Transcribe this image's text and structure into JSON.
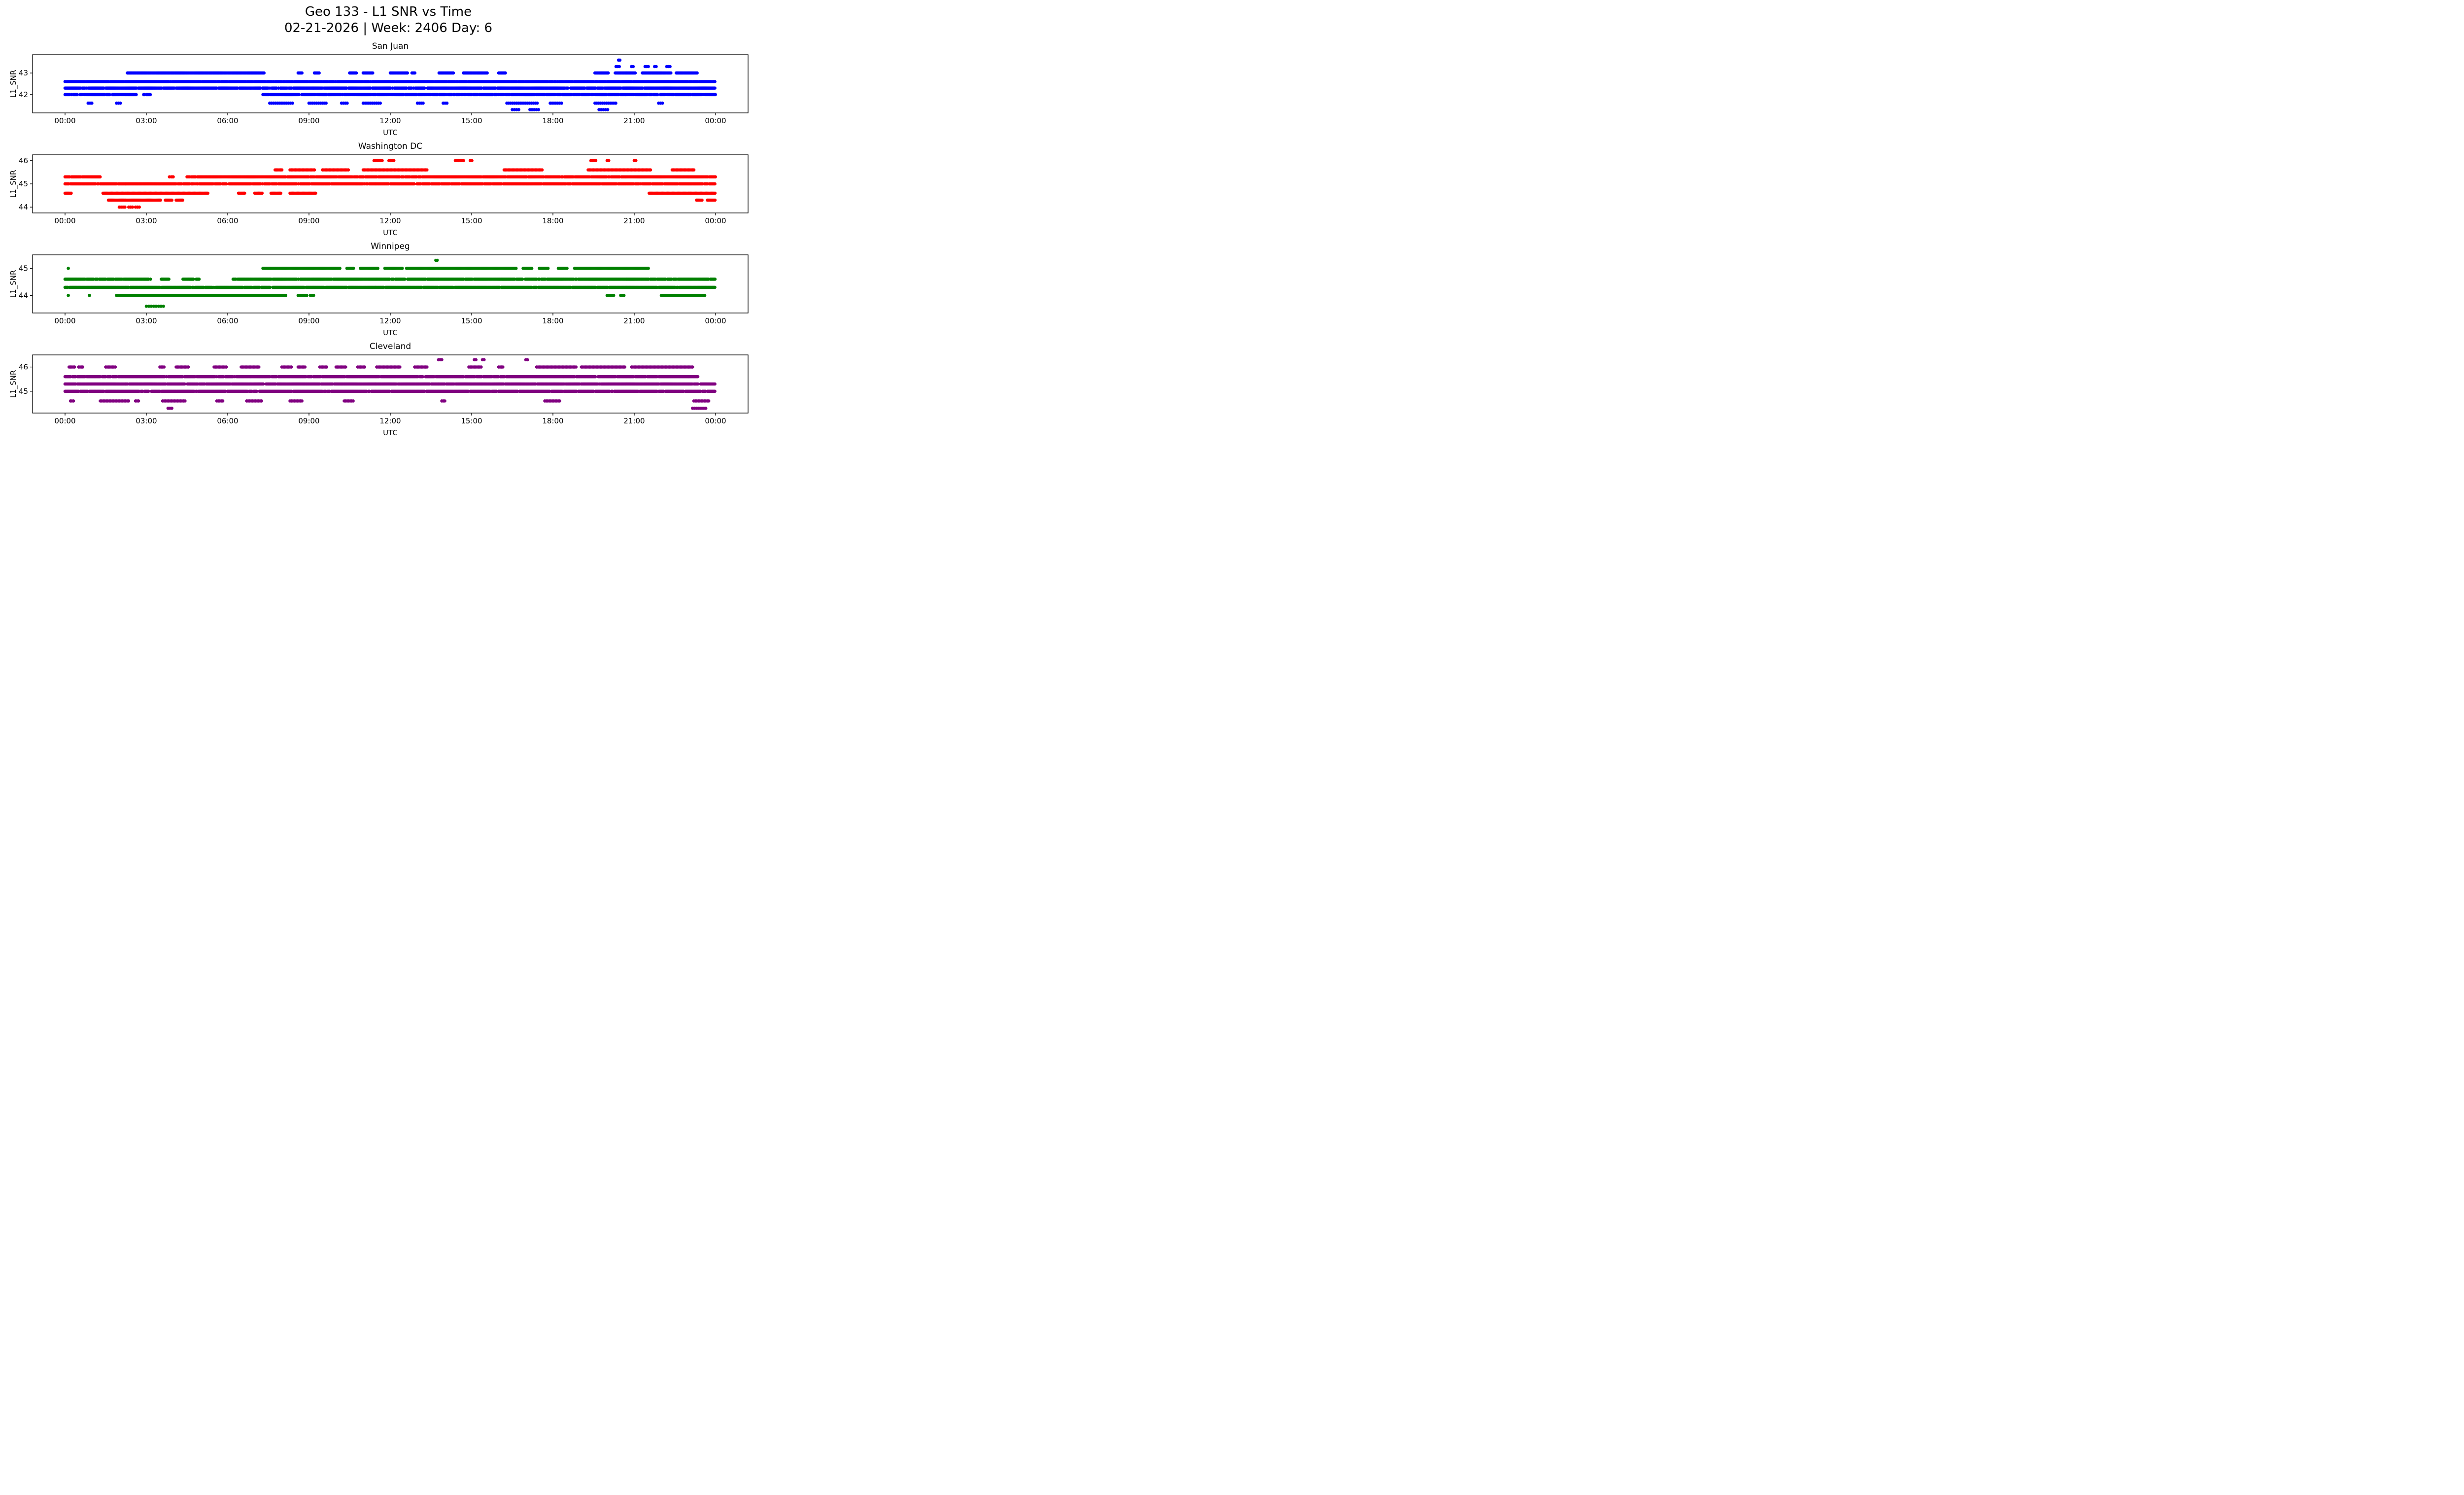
{
  "title": "Geo 133 - L1 SNR vs Time",
  "subtitle": "02-21-2026 | Week: 2406 Day: 6",
  "chart_data": [
    {
      "type": "scatter",
      "title": "San Juan",
      "color": "#0000ff",
      "xlabel": "UTC",
      "ylabel": "L1_SNR",
      "xlim": [
        -1.2,
        25.2
      ],
      "ylim": [
        41.15,
        43.85
      ],
      "yticks": [
        42,
        43
      ],
      "xticks": {
        "values": [
          0,
          3,
          6,
          9,
          12,
          15,
          18,
          21,
          24
        ],
        "labels": [
          "00:00",
          "03:00",
          "06:00",
          "09:00",
          "12:00",
          "15:00",
          "18:00",
          "21:00",
          "00:00"
        ]
      },
      "bands": [
        {
          "y": 43.6,
          "step": 0.05,
          "segments": [
            [
              20.42,
              20.48
            ]
          ]
        },
        {
          "y": 43.3,
          "step": 0.06,
          "segments": [
            [
              20.33,
              20.48
            ],
            [
              20.9,
              21.0
            ],
            [
              21.4,
              21.55
            ],
            [
              21.75,
              21.85
            ],
            [
              22.2,
              22.32
            ]
          ]
        },
        {
          "y": 43.0,
          "step": 0.035,
          "segments": [
            [
              2.3,
              7.35
            ],
            [
              8.6,
              8.75
            ],
            [
              9.2,
              9.4
            ],
            [
              10.5,
              10.75
            ],
            [
              11.0,
              11.35
            ],
            [
              12.0,
              12.65
            ],
            [
              12.8,
              12.92
            ],
            [
              13.8,
              14.35
            ],
            [
              14.7,
              15.6
            ],
            [
              16.0,
              16.25
            ],
            [
              19.55,
              20.05
            ],
            [
              20.3,
              21.05
            ],
            [
              21.3,
              22.35
            ],
            [
              22.55,
              23.35
            ]
          ]
        },
        {
          "y": 42.6,
          "step": 0.035,
          "drop": 0.06,
          "segments": [
            [
              0.0,
              24.0
            ]
          ]
        },
        {
          "y": 42.3,
          "step": 0.035,
          "drop": 0.06,
          "segments": [
            [
              0.0,
              24.0
            ]
          ]
        },
        {
          "y": 42.0,
          "step": 0.035,
          "drop": 0.08,
          "segments": [
            [
              0.0,
              2.65
            ],
            [
              2.9,
              3.15
            ],
            [
              7.3,
              24.0
            ]
          ]
        },
        {
          "y": 41.6,
          "step": 0.07,
          "segments": [
            [
              0.85,
              1.0
            ],
            [
              1.9,
              2.05
            ],
            [
              7.55,
              8.45
            ],
            [
              9.0,
              9.65
            ],
            [
              10.2,
              10.45
            ],
            [
              11.0,
              11.65
            ],
            [
              13.0,
              13.25
            ],
            [
              13.95,
              14.1
            ],
            [
              16.3,
              17.45
            ],
            [
              17.9,
              18.35
            ],
            [
              19.55,
              20.35
            ],
            [
              21.9,
              22.05
            ]
          ]
        },
        {
          "y": 41.3,
          "step": 0.08,
          "segments": [
            [
              16.5,
              16.75
            ],
            [
              17.15,
              17.5
            ],
            [
              19.7,
              20.05
            ]
          ]
        }
      ],
      "points": []
    },
    {
      "type": "scatter",
      "title": "Washington DC",
      "color": "#ff0000",
      "xlabel": "UTC",
      "ylabel": "L1_SNR",
      "xlim": [
        -1.2,
        25.2
      ],
      "ylim": [
        43.75,
        46.25
      ],
      "yticks": [
        44,
        45,
        46
      ],
      "xticks": {
        "values": [
          0,
          3,
          6,
          9,
          12,
          15,
          18,
          21,
          24
        ],
        "labels": [
          "00:00",
          "03:00",
          "06:00",
          "09:00",
          "12:00",
          "15:00",
          "18:00",
          "21:00",
          "00:00"
        ]
      },
      "bands": [
        {
          "y": 46.0,
          "step": 0.06,
          "segments": [
            [
              11.4,
              11.75
            ],
            [
              11.95,
              12.15
            ],
            [
              14.4,
              14.75
            ],
            [
              14.95,
              15.05
            ],
            [
              19.4,
              19.6
            ],
            [
              20.0,
              20.1
            ],
            [
              21.0,
              21.1
            ]
          ]
        },
        {
          "y": 45.6,
          "step": 0.05,
          "segments": [
            [
              7.75,
              8.0
            ],
            [
              8.3,
              9.2
            ],
            [
              9.5,
              10.45
            ],
            [
              11.0,
              13.35
            ],
            [
              16.2,
              17.6
            ],
            [
              19.3,
              21.6
            ],
            [
              22.4,
              23.2
            ]
          ]
        },
        {
          "y": 45.3,
          "step": 0.035,
          "drop": 0.05,
          "segments": [
            [
              0.0,
              1.3
            ],
            [
              3.85,
              4.0
            ],
            [
              4.5,
              24.0
            ]
          ]
        },
        {
          "y": 45.0,
          "step": 0.035,
          "drop": 0.07,
          "segments": [
            [
              0.0,
              24.0
            ]
          ]
        },
        {
          "y": 44.6,
          "step": 0.045,
          "segments": [
            [
              0.0,
              0.25
            ],
            [
              1.4,
              5.3
            ],
            [
              6.4,
              6.65
            ],
            [
              7.0,
              7.3
            ],
            [
              7.6,
              8.0
            ],
            [
              8.3,
              9.25
            ],
            [
              21.55,
              24.0
            ]
          ]
        },
        {
          "y": 44.3,
          "step": 0.04,
          "segments": [
            [
              1.6,
              3.55
            ],
            [
              3.7,
              3.95
            ],
            [
              4.1,
              4.35
            ],
            [
              23.3,
              23.5
            ],
            [
              23.7,
              24.0
            ]
          ]
        },
        {
          "y": 44.0,
          "step": 0.07,
          "segments": [
            [
              2.0,
              2.25
            ],
            [
              2.35,
              2.5
            ],
            [
              2.6,
              2.75
            ]
          ]
        }
      ],
      "points": []
    },
    {
      "type": "scatter",
      "title": "Winnipeg",
      "color": "#008000",
      "xlabel": "UTC",
      "ylabel": "L1_SNR",
      "xlim": [
        -1.2,
        25.2
      ],
      "ylim": [
        43.35,
        45.5
      ],
      "yticks": [
        44,
        45
      ],
      "xticks": {
        "values": [
          0,
          3,
          6,
          9,
          12,
          15,
          18,
          21,
          24
        ],
        "labels": [
          "00:00",
          "03:00",
          "06:00",
          "09:00",
          "12:00",
          "15:00",
          "18:00",
          "21:00",
          "00:00"
        ]
      },
      "bands": [
        {
          "y": 45.3,
          "step": 0.05,
          "segments": [
            [
              13.68,
              13.74
            ]
          ]
        },
        {
          "y": 45.0,
          "step": 0.04,
          "segments": [
            [
              7.3,
              10.15
            ],
            [
              10.4,
              10.65
            ],
            [
              10.9,
              11.55
            ],
            [
              11.8,
              12.45
            ],
            [
              12.6,
              16.65
            ],
            [
              16.9,
              17.25
            ],
            [
              17.5,
              17.85
            ],
            [
              18.2,
              18.55
            ],
            [
              18.8,
              21.55
            ]
          ]
        },
        {
          "y": 44.6,
          "step": 0.035,
          "drop": 0.06,
          "segments": [
            [
              0.0,
              3.15
            ],
            [
              3.55,
              3.85
            ],
            [
              4.35,
              4.95
            ],
            [
              6.2,
              24.0
            ]
          ]
        },
        {
          "y": 44.3,
          "step": 0.035,
          "drop": 0.05,
          "segments": [
            [
              0.0,
              24.0
            ]
          ]
        },
        {
          "y": 44.0,
          "step": 0.04,
          "segments": [
            [
              1.9,
              8.15
            ],
            [
              8.6,
              8.95
            ],
            [
              9.05,
              9.2
            ],
            [
              20.0,
              20.25
            ],
            [
              20.5,
              20.65
            ],
            [
              22.0,
              23.6
            ]
          ]
        },
        {
          "y": 43.6,
          "step": 0.09,
          "segments": [
            [
              3.0,
              3.65
            ]
          ]
        }
      ],
      "points": [
        [
          0.12,
          45.0
        ],
        [
          0.12,
          44.0
        ],
        [
          0.9,
          44.0
        ]
      ]
    },
    {
      "type": "scatter",
      "title": "Cleveland",
      "color": "#800080",
      "xlabel": "UTC",
      "ylabel": "L1_SNR",
      "xlim": [
        -1.2,
        25.2
      ],
      "ylim": [
        44.1,
        46.5
      ],
      "yticks": [
        45,
        46
      ],
      "xticks": {
        "values": [
          0,
          3,
          6,
          9,
          12,
          15,
          18,
          21,
          24
        ],
        "labels": [
          "00:00",
          "03:00",
          "06:00",
          "09:00",
          "12:00",
          "15:00",
          "18:00",
          "21:00",
          "00:00"
        ]
      },
      "bands": [
        {
          "y": 46.3,
          "step": 0.06,
          "segments": [
            [
              13.78,
              13.9
            ],
            [
              15.1,
              15.2
            ],
            [
              15.4,
              15.5
            ],
            [
              17.0,
              17.1
            ]
          ]
        },
        {
          "y": 46.0,
          "step": 0.05,
          "segments": [
            [
              0.15,
              0.35
            ],
            [
              0.5,
              0.65
            ],
            [
              1.5,
              1.85
            ],
            [
              3.5,
              3.65
            ],
            [
              4.1,
              4.55
            ],
            [
              5.5,
              5.95
            ],
            [
              6.5,
              7.15
            ],
            [
              8.0,
              8.35
            ],
            [
              8.6,
              8.85
            ],
            [
              9.4,
              9.65
            ],
            [
              10.0,
              10.35
            ],
            [
              10.8,
              11.05
            ],
            [
              11.5,
              12.35
            ],
            [
              12.9,
              13.35
            ],
            [
              14.9,
              15.35
            ],
            [
              16.0,
              16.15
            ],
            [
              17.4,
              18.85
            ],
            [
              19.05,
              20.65
            ],
            [
              20.9,
              23.15
            ]
          ]
        },
        {
          "y": 45.6,
          "step": 0.035,
          "drop": 0.05,
          "segments": [
            [
              0.0,
              23.35
            ]
          ]
        },
        {
          "y": 45.3,
          "step": 0.035,
          "drop": 0.04,
          "segments": [
            [
              0.0,
              24.0
            ]
          ]
        },
        {
          "y": 45.0,
          "step": 0.035,
          "drop": 0.06,
          "segments": [
            [
              0.0,
              24.0
            ]
          ]
        },
        {
          "y": 44.6,
          "step": 0.055,
          "segments": [
            [
              0.2,
              0.35
            ],
            [
              1.3,
              2.35
            ],
            [
              2.6,
              2.75
            ],
            [
              3.6,
              4.45
            ],
            [
              5.6,
              5.85
            ],
            [
              6.7,
              7.25
            ],
            [
              8.3,
              8.75
            ],
            [
              10.3,
              10.65
            ],
            [
              13.9,
              14.05
            ],
            [
              17.7,
              18.25
            ],
            [
              23.2,
              23.75
            ]
          ]
        },
        {
          "y": 44.3,
          "step": 0.07,
          "segments": [
            [
              3.8,
              3.95
            ],
            [
              23.15,
              23.65
            ]
          ]
        }
      ],
      "points": []
    }
  ]
}
